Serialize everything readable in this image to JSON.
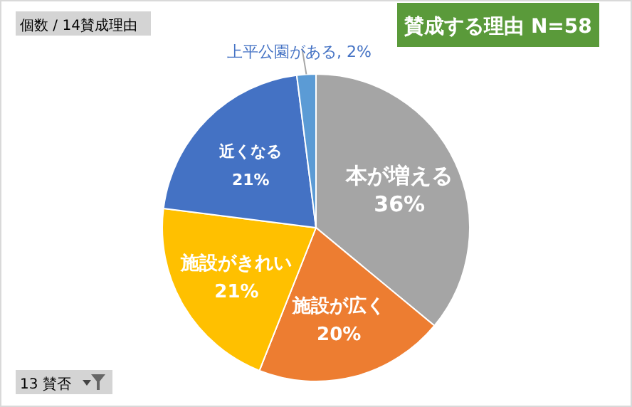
{
  "chart_data": {
    "type": "pie",
    "title": "賛成する理由 N=58",
    "categories": [
      "本が増える",
      "施設が広く",
      "施設がきれい",
      "近くなる",
      "上平公園がある"
    ],
    "values": [
      36,
      20,
      21,
      21,
      2
    ],
    "value_labels": [
      "36%",
      "20%",
      "21%",
      "21%",
      "2%"
    ],
    "colors": [
      "#a5a5a5",
      "#ed7d31",
      "#ffc000",
      "#4472c4",
      "#5b9bd5"
    ],
    "annotations": [
      "個数 / 14賛成理由",
      "13 賛否"
    ]
  }
}
